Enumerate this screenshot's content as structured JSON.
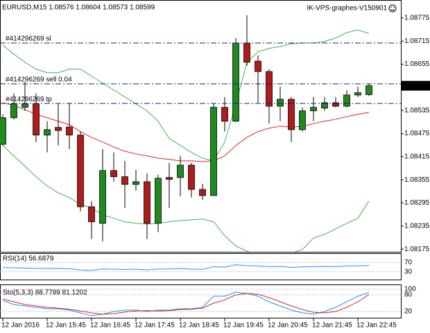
{
  "chart_data": {
    "type": "candlestick",
    "title": "EURUSD,M15  1.08576 1.08604 1.08573 1.08599",
    "watermark": "IK-VPS-graphes-V150901",
    "categories": [
      "12 Jan 2016",
      null,
      null,
      null,
      "12 Jan 15:45",
      null,
      null,
      null,
      "12 Jan 16:45",
      null,
      null,
      null,
      "12 Jan 17:45",
      null,
      null,
      null,
      "12 Jan 18:45",
      null,
      null,
      null,
      "12 Jan 19:45",
      null,
      null,
      null,
      "12 Jan 20:45",
      null,
      null,
      null,
      "12 Jan 21:45",
      null,
      null,
      null,
      "12 Jan 22:45",
      null
    ],
    "open": [
      1.08447,
      1.08516,
      1.08543,
      1.08552,
      1.08471,
      1.08491,
      1.08492,
      1.08471,
      1.08285,
      1.08242,
      1.08379,
      1.08363,
      1.08343,
      1.0835,
      1.08242,
      1.08361,
      1.08361,
      1.08393,
      1.0833,
      1.08314,
      1.08543,
      1.08507,
      1.0871,
      1.08663,
      1.08636,
      1.08546,
      1.08564,
      1.08485,
      1.08534,
      1.08541,
      1.08555,
      1.08546,
      1.08575,
      1.08576
    ],
    "high": [
      1.08525,
      1.08579,
      1.08609,
      1.08579,
      1.08507,
      1.08552,
      1.08555,
      1.0848,
      1.083,
      1.08435,
      1.08426,
      1.08404,
      1.08381,
      1.08372,
      1.08368,
      1.08399,
      1.08417,
      1.08399,
      1.08345,
      1.08552,
      1.0857,
      1.08723,
      1.08782,
      1.08678,
      1.08642,
      1.08597,
      1.0857,
      1.08543,
      1.0857,
      1.0857,
      1.0857,
      1.08588,
      1.08597,
      1.08604
    ],
    "low": [
      1.08444,
      1.08512,
      1.08534,
      1.08453,
      1.08426,
      1.08444,
      1.08435,
      1.08273,
      1.08201,
      1.08195,
      1.0835,
      1.08282,
      1.08327,
      1.08201,
      1.08219,
      1.08282,
      1.08312,
      1.08309,
      1.08303,
      1.08314,
      1.0848,
      1.08505,
      1.08651,
      1.08555,
      1.08501,
      1.08507,
      1.08453,
      1.0848,
      1.08507,
      1.08534,
      1.08543,
      1.08543,
      1.0857,
      1.08573
    ],
    "close": [
      1.08516,
      1.08552,
      1.08552,
      1.08471,
      1.08485,
      1.08483,
      1.08471,
      1.08285,
      1.08246,
      1.08379,
      1.08363,
      1.08343,
      1.0835,
      1.08242,
      1.08359,
      1.08356,
      1.08393,
      1.0833,
      1.08314,
      1.08543,
      1.08507,
      1.0871,
      1.0866,
      1.08636,
      1.08546,
      1.08564,
      1.08485,
      1.08534,
      1.08543,
      1.08555,
      1.08546,
      1.08575,
      1.08581,
      1.08599
    ],
    "up_color": "#1f8b1f",
    "down_color": "#b01c1c",
    "ylim": [
      1.08168,
      1.08818
    ],
    "yticks": [
      1.08775,
      1.08715,
      1.08655,
      1.08535,
      1.08475,
      1.08415,
      1.08355,
      1.08295,
      1.08235,
      1.08175
    ],
    "lines": [
      {
        "color": "#3cb44b",
        "values": [
          1.08705,
          1.08681,
          1.0866,
          1.08642,
          1.08633,
          1.08633,
          1.08642,
          1.08642,
          1.08624,
          1.08606,
          1.08588,
          1.0857,
          1.08552,
          1.08534,
          1.08507,
          1.08462,
          1.08444,
          1.08426,
          1.08411,
          1.08404,
          1.08453,
          1.08552,
          1.0866,
          1.08687,
          1.08696,
          1.08701,
          1.08708,
          1.0871,
          1.0871,
          1.08714,
          1.08723,
          1.08737,
          1.08744,
          1.08735
        ]
      },
      {
        "color": "#3cb44b",
        "values": [
          1.08444,
          1.08417,
          1.0839,
          1.08363,
          1.08339,
          1.08321,
          1.08309,
          1.08291,
          1.08282,
          1.08264,
          1.08255,
          1.08246,
          1.08242,
          1.0824,
          1.08242,
          1.08246,
          1.08249,
          1.08251,
          1.08253,
          1.08246,
          1.0821,
          1.08183,
          1.0817,
          1.08159,
          1.08156,
          1.08159,
          1.08165,
          1.08174,
          1.08204,
          1.08213,
          1.08228,
          1.08242,
          1.08255,
          1.083
        ]
      },
      {
        "color": "#e0201e",
        "values": [
          1.08555,
          1.08548,
          1.08537,
          1.08525,
          1.08516,
          1.08507,
          1.08498,
          1.0848,
          1.08465,
          1.08453,
          1.0844,
          1.08429,
          1.08422,
          1.08417,
          1.08411,
          1.08408,
          1.08404,
          1.08404,
          1.08402,
          1.08404,
          1.08417,
          1.08444,
          1.08465,
          1.0848,
          1.08489,
          1.08494,
          1.08492,
          1.08494,
          1.08501,
          1.08507,
          1.08512,
          1.08519,
          1.08525,
          1.0853
        ]
      }
    ],
    "order_lines": [
      {
        "label": "#414296269 sl",
        "value": 1.0871
      },
      {
        "label": "#414296269 sell 0.04",
        "value": 1.08604
      },
      {
        "label": "#414296269 tp",
        "value": 1.08553
      }
    ],
    "indicators": [
      {
        "title": "RSI(14) 56.6879",
        "ylim": [
          0,
          100
        ],
        "yticks": [
          70,
          30
        ],
        "lines": [
          {
            "color": "#1e90ff",
            "values": [
              48,
              47,
              46,
              44,
              44,
              44,
              43,
              38,
              36,
              42,
              41,
              40,
              41,
              38,
              42,
              42,
              44,
              41,
              40,
              52,
              50,
              60,
              56,
              55,
              52,
              53,
              49,
              51,
              52,
              53,
              52,
              55,
              55,
              56.6879
            ]
          }
        ]
      },
      {
        "title": "Sto(5,3,3) 88.7789 81.1202",
        "ylim": [
          0,
          100
        ],
        "yticks": [
          100,
          80,
          20
        ],
        "lines": [
          {
            "color": "#1e90ff",
            "values": [
              60,
              45,
              40,
              35,
              30,
              30,
              25,
              15,
              5,
              10,
              20,
              25,
              25,
              20,
              25,
              25,
              30,
              30,
              35,
              75,
              75,
              90,
              85,
              75,
              55,
              40,
              25,
              15,
              10,
              20,
              35,
              55,
              75,
              88.7789
            ]
          },
          {
            "color": "#e0201e",
            "values": [
              65,
              55,
              45,
              40,
              35,
              32,
              28,
              22,
              15,
              10,
              12,
              18,
              22,
              23,
              22,
              23,
              27,
              28,
              32,
              50,
              62,
              80,
              85,
              82,
              70,
              55,
              40,
              27,
              17,
              15,
              20,
              35,
              55,
              81.1202
            ]
          }
        ]
      }
    ]
  }
}
